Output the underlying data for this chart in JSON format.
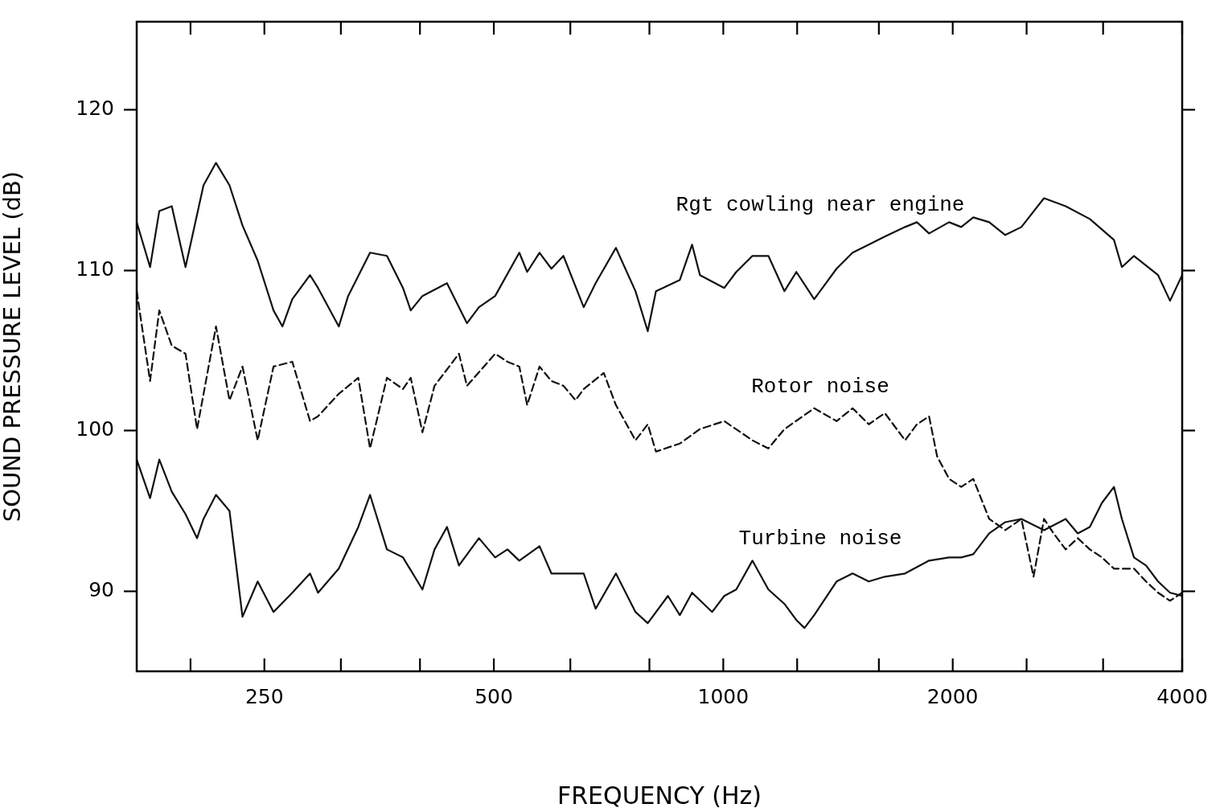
{
  "chart_data": {
    "type": "line",
    "xlabel": "FREQUENCY (Hz)",
    "ylabel": "SOUND PRESSURE LEVEL (dB)",
    "log": "x",
    "grid": false,
    "legend": false,
    "marker": "none",
    "xlim": [
      170,
      4000
    ],
    "ylim": [
      85,
      125.5
    ],
    "xticks": [
      {
        "value": 200,
        "label": null
      },
      250,
      {
        "value": 315,
        "label": null
      },
      {
        "value": 400,
        "label": null
      },
      500,
      {
        "value": 630,
        "label": null
      },
      {
        "value": 800,
        "label": null
      },
      1000,
      {
        "value": 1250,
        "label": null
      },
      {
        "value": 1600,
        "label": null
      },
      2000,
      {
        "value": 2500,
        "label": null
      },
      {
        "value": 3150,
        "label": null
      },
      4000
    ],
    "yticks": [
      90,
      100,
      110,
      120
    ],
    "series": [
      {
        "name": "Rgt cowling near engine",
        "color": "#111111",
        "line_style": "solid",
        "x": [
          170,
          177,
          182,
          189,
          197,
          208,
          216,
          225,
          234,
          245,
          257,
          264,
          272,
          287,
          294,
          313,
          322,
          344,
          362,
          380,
          389,
          403,
          434,
          461,
          478,
          502,
          540,
          553,
          574,
          595,
          617,
          656,
          680,
          723,
          767,
          796,
          816,
          877,
          910,
          932,
          1003,
          1040,
          1092,
          1146,
          1203,
          1247,
          1316,
          1408,
          1478,
          1552,
          1629,
          1732,
          1795,
          1862,
          1978,
          2052,
          2128,
          2233,
          2344,
          2461,
          2635,
          2813,
          3026,
          3255,
          3334,
          3458,
          3719,
          3856,
          4000
        ],
        "values": [
          113.0,
          110.2,
          113.7,
          114.0,
          110.2,
          115.3,
          116.7,
          115.3,
          112.8,
          110.6,
          107.5,
          106.5,
          108.2,
          109.7,
          108.9,
          106.5,
          108.4,
          111.1,
          110.9,
          108.9,
          107.5,
          108.4,
          109.2,
          106.7,
          107.7,
          108.4,
          111.1,
          109.9,
          111.1,
          110.1,
          110.9,
          107.7,
          109.2,
          111.4,
          108.7,
          106.2,
          108.7,
          109.4,
          111.6,
          109.7,
          108.9,
          109.9,
          110.9,
          110.9,
          108.7,
          109.9,
          108.2,
          110.1,
          111.1,
          111.6,
          112.1,
          112.7,
          113.0,
          112.3,
          113.0,
          112.7,
          113.3,
          113.0,
          112.2,
          112.7,
          114.5,
          114.0,
          113.2,
          111.9,
          110.2,
          110.9,
          109.7,
          108.1,
          109.7
        ]
      },
      {
        "name": "Rotor noise",
        "color": "#111111",
        "line_style": "dashed",
        "x": [
          170,
          177,
          182,
          189,
          197,
          204,
          216,
          225,
          234,
          245,
          257,
          272,
          287,
          294,
          313,
          332,
          344,
          362,
          380,
          389,
          403,
          418,
          450,
          461,
          502,
          521,
          540,
          553,
          574,
          595,
          617,
          640,
          656,
          697,
          723,
          767,
          796,
          816,
          877,
          932,
          1003,
          1092,
          1146,
          1203,
          1316,
          1408,
          1478,
          1552,
          1629,
          1732,
          1795,
          1862,
          1908,
          1978,
          2052,
          2128,
          2233,
          2344,
          2461,
          2553,
          2635,
          2713,
          2813,
          2918,
          3026,
          3139,
          3255,
          3458,
          3586,
          3719,
          3856,
          4000
        ],
        "values": [
          108.7,
          103.1,
          107.5,
          105.3,
          104.8,
          100.1,
          106.5,
          101.9,
          104.0,
          99.4,
          104.0,
          104.3,
          100.6,
          100.9,
          102.3,
          103.3,
          98.9,
          103.3,
          102.6,
          103.3,
          99.9,
          102.8,
          104.8,
          102.8,
          104.8,
          104.3,
          104.0,
          101.6,
          104.0,
          103.1,
          102.8,
          101.9,
          102.6,
          103.6,
          101.6,
          99.4,
          100.4,
          98.7,
          99.2,
          100.1,
          100.6,
          99.4,
          98.9,
          100.1,
          101.4,
          100.6,
          101.4,
          100.4,
          101.1,
          99.4,
          100.4,
          100.9,
          98.4,
          97.0,
          96.5,
          97.0,
          94.5,
          93.8,
          94.5,
          90.9,
          94.5,
          93.6,
          92.6,
          93.3,
          92.6,
          92.1,
          91.4,
          91.4,
          90.6,
          89.9,
          89.4,
          89.9
        ]
      },
      {
        "name": "Turbine noise",
        "color": "#111111",
        "line_style": "solid",
        "x": [
          170,
          177,
          182,
          189,
          197,
          204,
          208,
          216,
          225,
          234,
          245,
          257,
          272,
          287,
          294,
          313,
          332,
          344,
          362,
          380,
          403,
          418,
          434,
          450,
          478,
          502,
          521,
          540,
          574,
          595,
          617,
          656,
          680,
          723,
          767,
          796,
          846,
          877,
          910,
          967,
          1003,
          1040,
          1092,
          1146,
          1203,
          1247,
          1278,
          1316,
          1408,
          1478,
          1552,
          1629,
          1732,
          1862,
          1978,
          2052,
          2128,
          2233,
          2344,
          2461,
          2635,
          2813,
          2918,
          3026,
          3139,
          3255,
          3334,
          3458,
          3586,
          3719,
          3856,
          4000
        ],
        "values": [
          98.2,
          95.8,
          98.2,
          96.2,
          94.8,
          93.3,
          94.5,
          96.0,
          95.0,
          88.4,
          90.6,
          88.7,
          89.9,
          91.1,
          89.9,
          91.4,
          94.0,
          96.0,
          92.6,
          92.1,
          90.1,
          92.6,
          94.0,
          91.6,
          93.3,
          92.1,
          92.6,
          91.9,
          92.8,
          91.1,
          91.1,
          91.1,
          88.9,
          91.1,
          88.7,
          88.0,
          89.7,
          88.5,
          89.9,
          88.7,
          89.7,
          90.1,
          91.9,
          90.1,
          89.2,
          88.2,
          87.7,
          88.5,
          90.6,
          91.1,
          90.6,
          90.9,
          91.1,
          91.9,
          92.1,
          92.1,
          92.3,
          93.6,
          94.3,
          94.5,
          93.8,
          94.5,
          93.6,
          94.0,
          95.5,
          96.5,
          94.5,
          92.1,
          91.6,
          90.6,
          89.9,
          89.7
        ]
      }
    ]
  }
}
